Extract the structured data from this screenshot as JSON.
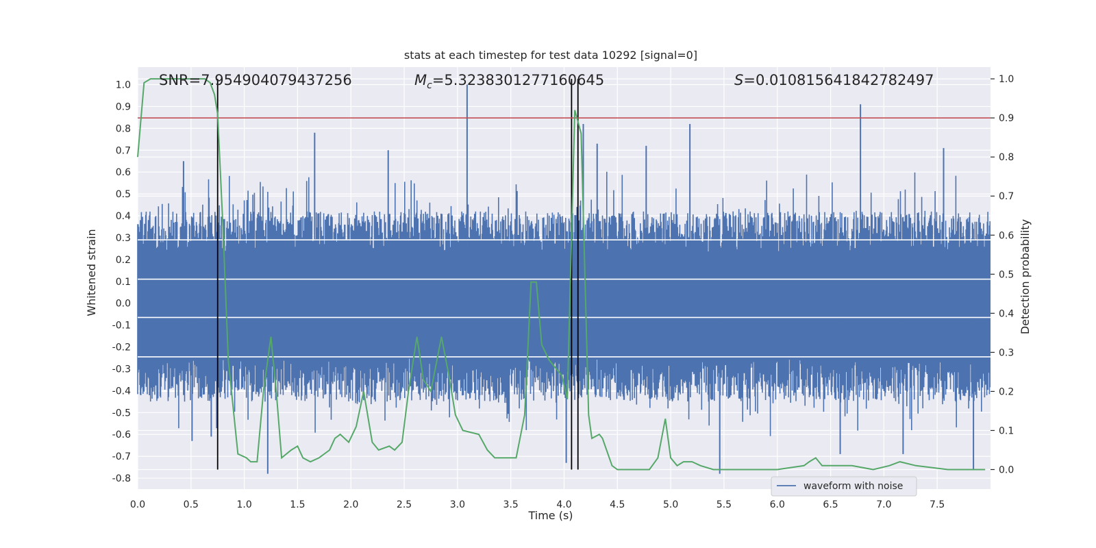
{
  "chart_data": {
    "type": "line",
    "title": "stats at each timestep for test data 10292 [signal=0]",
    "xlabel": "Time (s)",
    "ylabel": "Whitened strain",
    "y2label": "Detection probability",
    "xlim": [
      0.0,
      8.0
    ],
    "ylim": [
      -0.85,
      1.08
    ],
    "y2lim": [
      -0.05,
      1.03
    ],
    "xticks": [
      "0.0",
      "0.5",
      "1.0",
      "1.5",
      "2.0",
      "2.5",
      "3.0",
      "3.5",
      "4.0",
      "4.5",
      "5.0",
      "5.5",
      "6.0",
      "6.5",
      "7.0",
      "7.5"
    ],
    "yticks": [
      "1.0",
      "0.9",
      "0.8",
      "0.7",
      "0.6",
      "0.5",
      "0.4",
      "0.3",
      "0.2",
      "0.1",
      "0.0",
      "-0.1",
      "-0.2",
      "-0.3",
      "-0.4",
      "-0.5",
      "-0.6",
      "-0.7",
      "-0.8"
    ],
    "y2ticks": [
      "1.0",
      "0.9",
      "0.8",
      "0.7",
      "0.6",
      "0.5",
      "0.4",
      "0.3",
      "0.2",
      "0.1",
      "0.0"
    ],
    "annotations": {
      "snr": "SNR=7.954904079437256",
      "mc_symbol": "M",
      "mc_sub": "c",
      "mc_value": "=5.3238301277160645",
      "s_symbol": "S",
      "s_value": "=0.010815641842782497"
    },
    "threshold": 0.9,
    "threshold_color": "#c44e52",
    "markers_x": [
      0.75,
      4.07,
      4.13
    ],
    "series": [
      {
        "name": "waveform with noise",
        "color": "#4c72b0",
        "sample_rate": 200,
        "base_amplitude_top": 0.42,
        "base_amplitude_bottom": -0.45,
        "spikes": [
          {
            "t": 3.09,
            "v": 1.0
          },
          {
            "t": 1.66,
            "v": 0.78
          },
          {
            "t": 6.78,
            "v": 0.91
          },
          {
            "t": 5.18,
            "v": 0.82
          },
          {
            "t": 4.18,
            "v": 0.82
          },
          {
            "t": 4.31,
            "v": 0.73
          },
          {
            "t": 4.77,
            "v": 0.72
          },
          {
            "t": 7.56,
            "v": 0.71
          },
          {
            "t": 0.43,
            "v": 0.65
          },
          {
            "t": 2.35,
            "v": 0.7
          },
          {
            "t": 1.22,
            "v": -0.78
          },
          {
            "t": 5.46,
            "v": -0.78
          },
          {
            "t": 4.02,
            "v": -0.73
          },
          {
            "t": 6.59,
            "v": -0.69
          },
          {
            "t": 7.18,
            "v": -0.69
          },
          {
            "t": 7.84,
            "v": -0.76
          },
          {
            "t": 0.51,
            "v": -0.63
          },
          {
            "t": 0.69,
            "v": -0.61
          }
        ]
      },
      {
        "name": "detection probability",
        "color": "#55a868",
        "points": [
          [
            0.0,
            0.8
          ],
          [
            0.06,
            0.99
          ],
          [
            0.12,
            1.0
          ],
          [
            0.3,
            1.0
          ],
          [
            0.5,
            1.0
          ],
          [
            0.63,
            1.0
          ],
          [
            0.68,
            0.99
          ],
          [
            0.72,
            0.96
          ],
          [
            0.75,
            0.91
          ],
          [
            0.8,
            0.62
          ],
          [
            0.85,
            0.28
          ],
          [
            0.94,
            0.04
          ],
          [
            1.02,
            0.03
          ],
          [
            1.06,
            0.02
          ],
          [
            1.12,
            0.02
          ],
          [
            1.18,
            0.2
          ],
          [
            1.25,
            0.34
          ],
          [
            1.3,
            0.2
          ],
          [
            1.35,
            0.03
          ],
          [
            1.44,
            0.05
          ],
          [
            1.5,
            0.06
          ],
          [
            1.55,
            0.03
          ],
          [
            1.62,
            0.02
          ],
          [
            1.7,
            0.03
          ],
          [
            1.8,
            0.05
          ],
          [
            1.85,
            0.08
          ],
          [
            1.9,
            0.09
          ],
          [
            1.98,
            0.07
          ],
          [
            2.05,
            0.11
          ],
          [
            2.12,
            0.2
          ],
          [
            2.2,
            0.07
          ],
          [
            2.26,
            0.05
          ],
          [
            2.36,
            0.06
          ],
          [
            2.41,
            0.05
          ],
          [
            2.48,
            0.07
          ],
          [
            2.54,
            0.2
          ],
          [
            2.62,
            0.34
          ],
          [
            2.68,
            0.23
          ],
          [
            2.75,
            0.2
          ],
          [
            2.85,
            0.34
          ],
          [
            2.92,
            0.24
          ],
          [
            2.98,
            0.14
          ],
          [
            3.05,
            0.1
          ],
          [
            3.2,
            0.09
          ],
          [
            3.28,
            0.05
          ],
          [
            3.35,
            0.03
          ],
          [
            3.48,
            0.03
          ],
          [
            3.55,
            0.03
          ],
          [
            3.63,
            0.14
          ],
          [
            3.69,
            0.48
          ],
          [
            3.74,
            0.48
          ],
          [
            3.79,
            0.32
          ],
          [
            3.86,
            0.28
          ],
          [
            3.98,
            0.24
          ],
          [
            4.03,
            0.18
          ],
          [
            4.1,
            0.92
          ],
          [
            4.16,
            0.86
          ],
          [
            4.23,
            0.14
          ],
          [
            4.26,
            0.08
          ],
          [
            4.33,
            0.09
          ],
          [
            4.36,
            0.08
          ],
          [
            4.45,
            0.01
          ],
          [
            4.5,
            0.0
          ],
          [
            4.6,
            0.0
          ],
          [
            4.8,
            0.0
          ],
          [
            4.88,
            0.03
          ],
          [
            4.95,
            0.13
          ],
          [
            5.0,
            0.03
          ],
          [
            5.06,
            0.01
          ],
          [
            5.12,
            0.02
          ],
          [
            5.2,
            0.02
          ],
          [
            5.28,
            0.01
          ],
          [
            5.4,
            0.0
          ],
          [
            6.0,
            0.0
          ],
          [
            6.25,
            0.01
          ],
          [
            6.3,
            0.02
          ],
          [
            6.36,
            0.03
          ],
          [
            6.42,
            0.01
          ],
          [
            6.52,
            0.01
          ],
          [
            6.7,
            0.01
          ],
          [
            6.9,
            0.0
          ],
          [
            7.05,
            0.01
          ],
          [
            7.15,
            0.02
          ],
          [
            7.3,
            0.01
          ],
          [
            7.6,
            0.0
          ],
          [
            7.95,
            0.0
          ]
        ]
      }
    ],
    "legend": {
      "label": "waveform with noise",
      "position": "lower-right"
    }
  },
  "colors": {
    "plot_background": "#eaeaf2",
    "grid": "#ffffff",
    "text": "#262626"
  }
}
